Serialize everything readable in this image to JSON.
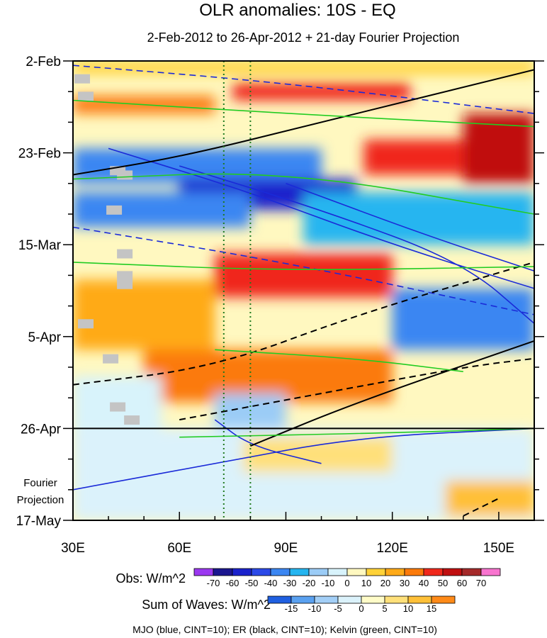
{
  "chart_data": {
    "type": "heatmap",
    "title": "OLR anomalies: 10S - EQ",
    "subtitle": "2-Feb-2012 to 26-Apr-2012 + 21-day Fourier Projection",
    "x_axis": {
      "range": [
        30,
        160
      ],
      "ticks": [
        {
          "v": 30,
          "label": "30E"
        },
        {
          "v": 60,
          "label": "60E"
        },
        {
          "v": 90,
          "label": "90E"
        },
        {
          "v": 120,
          "label": "120E"
        },
        {
          "v": 150,
          "label": "150E"
        }
      ]
    },
    "y_axis": {
      "range_days": [
        0,
        105
      ],
      "ticks": [
        {
          "d": 0,
          "label": "2-Feb"
        },
        {
          "d": 21,
          "label": "23-Feb"
        },
        {
          "d": 42,
          "label": "15-Mar"
        },
        {
          "d": 63,
          "label": "5-Apr"
        },
        {
          "d": 84,
          "label": "26-Apr"
        },
        {
          "d": 105,
          "label": "17-May"
        }
      ]
    },
    "projection_start_day": 84,
    "projection_label": [
      "Fourier",
      "Projection"
    ],
    "reference_longitudes": [
      72.5,
      80
    ],
    "legend_obs": {
      "label": "Obs: W/m^2",
      "levels": [
        -70,
        -60,
        -50,
        -40,
        -30,
        -20,
        -10,
        0,
        10,
        20,
        30,
        40,
        50,
        60,
        70
      ],
      "colors": [
        "#9b38f0",
        "#1b168f",
        "#1a22cc",
        "#2b49e8",
        "#3b86f2",
        "#25b5f0",
        "#9bccf6",
        "#d8f3fb",
        "#fff8c0",
        "#ffd238",
        "#ffaa18",
        "#fb7a0a",
        "#f0281c",
        "#c00f10",
        "#a52a2a",
        "#f874cf"
      ]
    },
    "legend_waves": {
      "label": "Sum of Waves: W/m^2",
      "levels": [
        -15,
        -10,
        -5,
        0,
        5,
        10,
        15
      ],
      "colors": [
        "#1f5fe0",
        "#5aa1f0",
        "#a3cff7",
        "#dbf2fb",
        "#fffcc8",
        "#ffe07a",
        "#ffc038",
        "#ff8a18"
      ]
    },
    "footer": "MJO (blue, CINT=10); ER (black, CINT=10); Kelvin (green, CINT=10)",
    "observed_anomaly_bands": [
      {
        "lon0": 30,
        "lon1": 160,
        "day0": 0,
        "day1": 3,
        "value": 10
      },
      {
        "lon0": 75,
        "lon1": 125,
        "day0": 5,
        "day1": 9,
        "value": 40
      },
      {
        "lon0": 30,
        "lon1": 70,
        "day0": 8,
        "day1": 12,
        "value": 30
      },
      {
        "lon0": 140,
        "lon1": 160,
        "day0": 12,
        "day1": 28,
        "value": 50
      },
      {
        "lon0": 112,
        "lon1": 140,
        "day0": 18,
        "day1": 26,
        "value": 40
      },
      {
        "lon0": 30,
        "lon1": 100,
        "day0": 20,
        "day1": 28,
        "value": -40
      },
      {
        "lon0": 60,
        "lon1": 110,
        "day0": 27,
        "day1": 34,
        "value": -60
      },
      {
        "lon0": 30,
        "lon1": 80,
        "day0": 30,
        "day1": 38,
        "value": -40
      },
      {
        "lon0": 95,
        "lon1": 160,
        "day0": 30,
        "day1": 42,
        "value": -30
      },
      {
        "lon0": 70,
        "lon1": 120,
        "day0": 44,
        "day1": 54,
        "value": 40
      },
      {
        "lon0": 30,
        "lon1": 70,
        "day0": 50,
        "day1": 66,
        "value": 20
      },
      {
        "lon0": 120,
        "lon1": 160,
        "day0": 52,
        "day1": 66,
        "value": -40
      },
      {
        "lon0": 50,
        "lon1": 120,
        "day0": 66,
        "day1": 78,
        "value": 30
      },
      {
        "lon0": 30,
        "lon1": 55,
        "day0": 72,
        "day1": 84,
        "value": -10
      },
      {
        "lon0": 70,
        "lon1": 90,
        "day0": 76,
        "day1": 84,
        "value": -20
      },
      {
        "lon0": 30,
        "lon1": 160,
        "day0": 84,
        "day1": 105,
        "value": -5
      },
      {
        "lon0": 78,
        "lon1": 120,
        "day0": 86,
        "day1": 94,
        "value": 5
      },
      {
        "lon0": 135,
        "lon1": 160,
        "day0": 96,
        "day1": 104,
        "value": 10
      }
    ],
    "contour_lines": [
      {
        "wave": "MJO",
        "color": "#1a2ad8",
        "style": "solid",
        "points": [
          [
            40,
            20
          ],
          [
            80,
            30
          ],
          [
            120,
            42
          ],
          [
            160,
            52
          ]
        ]
      },
      {
        "wave": "MJO",
        "color": "#1a2ad8",
        "style": "solid",
        "points": [
          [
            60,
            24
          ],
          [
            100,
            34
          ],
          [
            140,
            46
          ],
          [
            160,
            60
          ]
        ]
      },
      {
        "wave": "MJO",
        "color": "#1a2ad8",
        "style": "solid",
        "points": [
          [
            90,
            28
          ],
          [
            130,
            40
          ],
          [
            160,
            48
          ]
        ]
      },
      {
        "wave": "MJO",
        "color": "#1a2ad8",
        "style": "dashed",
        "points": [
          [
            30,
            1
          ],
          [
            90,
            5
          ],
          [
            160,
            12
          ]
        ]
      },
      {
        "wave": "MJO",
        "color": "#1a2ad8",
        "style": "dashed",
        "points": [
          [
            30,
            38
          ],
          [
            90,
            46
          ],
          [
            160,
            58
          ]
        ]
      },
      {
        "wave": "MJO",
        "color": "#1a2ad8",
        "style": "solid",
        "points": [
          [
            70,
            82
          ],
          [
            80,
            88
          ],
          [
            100,
            92
          ]
        ]
      },
      {
        "wave": "MJO",
        "color": "#1a2ad8",
        "style": "solid",
        "points": [
          [
            30,
            98
          ],
          [
            70,
            92
          ],
          [
            110,
            86
          ],
          [
            160,
            84
          ]
        ]
      },
      {
        "wave": "ER",
        "color": "#000000",
        "style": "solid",
        "points": [
          [
            30,
            26
          ],
          [
            60,
            22
          ],
          [
            100,
            14
          ],
          [
            160,
            2
          ]
        ]
      },
      {
        "wave": "ER",
        "color": "#000000",
        "style": "solid",
        "points": [
          [
            80,
            88
          ],
          [
            110,
            78
          ],
          [
            160,
            64
          ]
        ]
      },
      {
        "wave": "ER",
        "color": "#000000",
        "style": "dashed",
        "points": [
          [
            30,
            74
          ],
          [
            70,
            70
          ],
          [
            110,
            58
          ],
          [
            160,
            46
          ]
        ]
      },
      {
        "wave": "ER",
        "color": "#000000",
        "style": "dashed",
        "points": [
          [
            60,
            82
          ],
          [
            100,
            76
          ],
          [
            140,
            70
          ],
          [
            160,
            68
          ]
        ]
      },
      {
        "wave": "ER",
        "color": "#000000",
        "style": "dashed",
        "points": [
          [
            140,
            104
          ],
          [
            150,
            100
          ]
        ]
      },
      {
        "wave": "Kelvin",
        "color": "#22cc22",
        "style": "solid",
        "points": [
          [
            30,
            9
          ],
          [
            90,
            12
          ],
          [
            160,
            15
          ]
        ]
      },
      {
        "wave": "Kelvin",
        "color": "#22cc22",
        "style": "solid",
        "points": [
          [
            30,
            27
          ],
          [
            90,
            25
          ],
          [
            160,
            35
          ]
        ]
      },
      {
        "wave": "Kelvin",
        "color": "#22cc22",
        "style": "solid",
        "points": [
          [
            30,
            46
          ],
          [
            90,
            48
          ],
          [
            160,
            47
          ]
        ]
      },
      {
        "wave": "Kelvin",
        "color": "#22cc22",
        "style": "solid",
        "points": [
          [
            70,
            66
          ],
          [
            110,
            68
          ],
          [
            140,
            71
          ]
        ]
      },
      {
        "wave": "Kelvin",
        "color": "#22cc22",
        "style": "solid",
        "points": [
          [
            60,
            86
          ],
          [
            120,
            85
          ],
          [
            160,
            84
          ]
        ]
      }
    ],
    "missing_data_cells": [
      [
        32,
        4
      ],
      [
        33,
        8
      ],
      [
        42,
        25
      ],
      [
        44,
        26
      ],
      [
        41,
        34
      ],
      [
        44,
        44
      ],
      [
        44,
        49
      ],
      [
        44,
        51
      ],
      [
        33,
        60
      ],
      [
        40,
        68
      ],
      [
        42,
        79
      ],
      [
        46,
        82
      ]
    ]
  }
}
